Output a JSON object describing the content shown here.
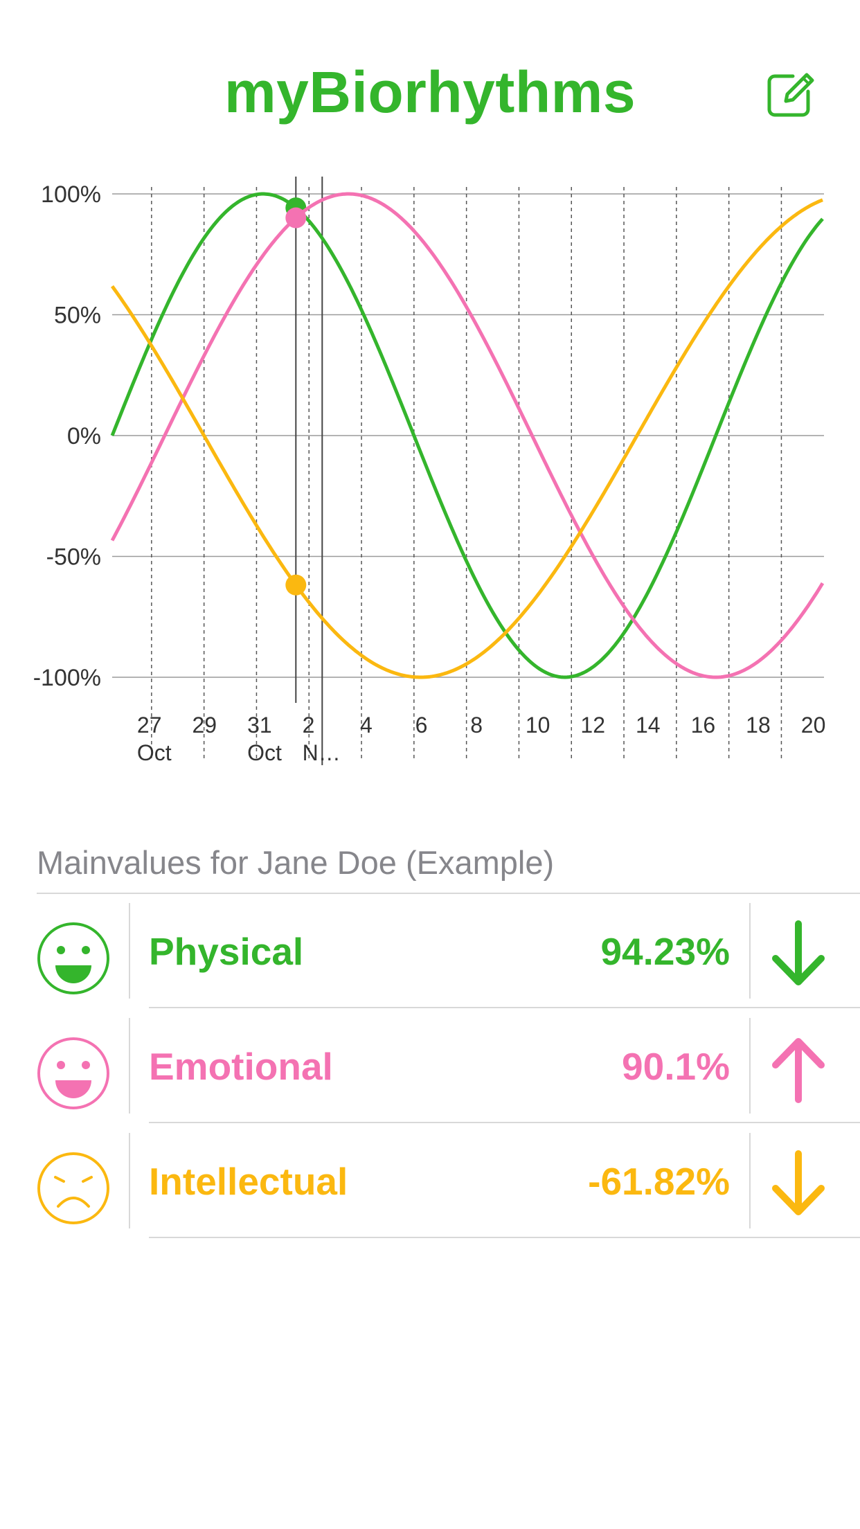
{
  "header": {
    "title": "myBiorhythms",
    "accent_color": "#34b52c",
    "edit_icon": "compose-icon"
  },
  "chart_data": {
    "type": "line",
    "y_ticks": [
      "100%",
      "50%",
      "0%",
      "-50%",
      "-100%"
    ],
    "ylim": [
      -100,
      100
    ],
    "x_ticks": [
      {
        "day": "27",
        "month": "Oct"
      },
      {
        "day": "29",
        "month": ""
      },
      {
        "day": "31",
        "month": "Oct"
      },
      {
        "day": "2",
        "month": "N…"
      },
      {
        "day": "4",
        "month": ""
      },
      {
        "day": "6",
        "month": ""
      },
      {
        "day": "8",
        "month": ""
      },
      {
        "day": "10",
        "month": ""
      },
      {
        "day": "12",
        "month": ""
      },
      {
        "day": "14",
        "month": ""
      },
      {
        "day": "16",
        "month": ""
      },
      {
        "day": "18",
        "month": ""
      },
      {
        "day": "20",
        "month": ""
      }
    ],
    "x_range_days": [
      0,
      27
    ],
    "today_day": 7,
    "series": [
      {
        "name": "Physical",
        "color": "#34b52c",
        "period": 23,
        "start_value": 0,
        "today_value": 94.23
      },
      {
        "name": "Emotional",
        "color": "#f472b2",
        "period": 28,
        "start_value": -43.4,
        "today_value": 90.1
      },
      {
        "name": "Intellectual",
        "color": "#fbb810",
        "period": 33,
        "start_value": 61.8,
        "today_value": -61.82
      }
    ]
  },
  "main_values": {
    "header": "Mainvalues for Jane Doe (Example)",
    "rows": [
      {
        "label": "Physical",
        "value": "94.23%",
        "color": "#34b52c",
        "mood_icon": "happy-face-icon",
        "trend_icon": "arrow-down-icon"
      },
      {
        "label": "Emotional",
        "value": "90.1%",
        "color": "#f472b2",
        "mood_icon": "happy-face-icon",
        "trend_icon": "arrow-up-icon"
      },
      {
        "label": "Intellectual",
        "value": "-61.82%",
        "color": "#fbb810",
        "mood_icon": "sad-face-icon",
        "trend_icon": "arrow-down-icon"
      }
    ]
  }
}
